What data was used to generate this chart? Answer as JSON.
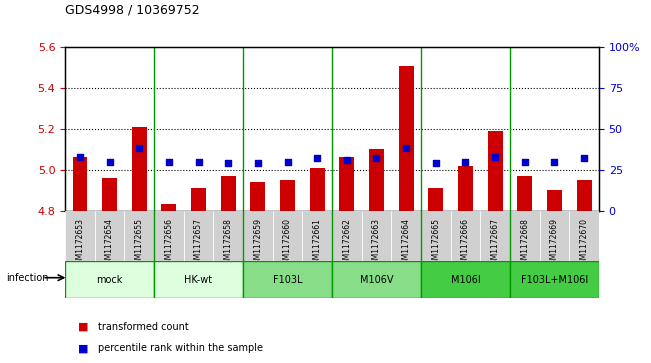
{
  "title": "GDS4998 / 10369752",
  "samples": [
    "GSM1172653",
    "GSM1172654",
    "GSM1172655",
    "GSM1172656",
    "GSM1172657",
    "GSM1172658",
    "GSM1172659",
    "GSM1172660",
    "GSM1172661",
    "GSM1172662",
    "GSM1172663",
    "GSM1172664",
    "GSM1172665",
    "GSM1172666",
    "GSM1172667",
    "GSM1172668",
    "GSM1172669",
    "GSM1172670"
  ],
  "bar_values": [
    5.06,
    4.96,
    5.21,
    4.83,
    4.91,
    4.97,
    4.94,
    4.95,
    5.01,
    5.06,
    5.1,
    5.51,
    4.91,
    5.02,
    5.19,
    4.97,
    4.9,
    4.95
  ],
  "percentile_values": [
    33,
    30,
    38,
    30,
    30,
    29,
    29,
    30,
    32,
    31,
    32,
    38,
    29,
    30,
    33,
    30,
    30,
    32
  ],
  "groups": [
    {
      "label": "mock",
      "start": 0,
      "end": 3,
      "color": "#ccffcc"
    },
    {
      "label": "HK-wt",
      "start": 3,
      "end": 6,
      "color": "#ccffcc"
    },
    {
      "label": "F103L",
      "start": 6,
      "end": 9,
      "color": "#66dd66"
    },
    {
      "label": "M106V",
      "start": 9,
      "end": 12,
      "color": "#66dd66"
    },
    {
      "label": "M106I",
      "start": 12,
      "end": 15,
      "color": "#44cc44"
    },
    {
      "label": "F103L+M106I",
      "start": 15,
      "end": 18,
      "color": "#44cc44"
    }
  ],
  "ylim_left": [
    4.8,
    5.6
  ],
  "ylim_right": [
    0,
    100
  ],
  "yticks_left": [
    4.8,
    5.0,
    5.2,
    5.4,
    5.6
  ],
  "yticks_right": [
    0,
    25,
    50,
    75,
    100
  ],
  "bar_color": "#cc0000",
  "dot_color": "#0000cc",
  "bar_bottom": 4.8,
  "legend_labels": [
    "transformed count",
    "percentile rank within the sample"
  ],
  "legend_colors": [
    "#cc0000",
    "#0000cc"
  ],
  "infection_label": "infection",
  "group_border_color": "#009900"
}
